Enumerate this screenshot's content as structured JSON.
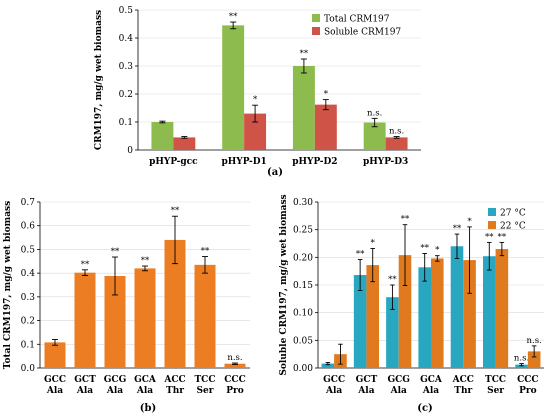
{
  "chart_data": [
    {
      "panel": "(a)",
      "type": "bar",
      "categories": [
        "pHYP-gcc",
        "pHYP-D1",
        "pHYP-D2",
        "pHYP-D3"
      ],
      "ylabel": "CRM197,  mg/g wet biomass",
      "ylim": [
        0,
        0.5
      ],
      "yticks": [
        0,
        0.1,
        0.2,
        0.3,
        0.4,
        0.5
      ],
      "yticklabels": [
        "0",
        "0.1",
        "0.2",
        "0.3",
        "0.4",
        "0.5"
      ],
      "grid": true,
      "legend_position": "top-right",
      "series": [
        {
          "name": "Total CRM197",
          "color": "#8dbb4e",
          "values": [
            0.1,
            0.445,
            0.3,
            0.098
          ],
          "errors": [
            0.003,
            0.012,
            0.025,
            0.015
          ],
          "sig": [
            "",
            "**",
            "**",
            "n.s."
          ],
          "sig_color": [
            "#000000",
            "#000000",
            "#000000",
            "#000000"
          ]
        },
        {
          "name": "Soluble CRM197",
          "color": "#d05348",
          "values": [
            0.045,
            0.13,
            0.162,
            0.045
          ],
          "errors": [
            0.003,
            0.03,
            0.018,
            0.003
          ],
          "sig": [
            "",
            "*",
            "*",
            "n.s."
          ],
          "sig_color": [
            "#000000",
            "#000000",
            "#000000",
            "#c0392b"
          ]
        }
      ]
    },
    {
      "panel": "(b)",
      "type": "bar",
      "categories": [
        [
          "GCC",
          "Ala"
        ],
        [
          "GCT",
          "Ala"
        ],
        [
          "GCG",
          "Ala"
        ],
        [
          "GCA",
          "Ala"
        ],
        [
          "ACC",
          "Thr"
        ],
        [
          "TCC",
          "Ser"
        ],
        [
          "CCC",
          "Pro"
        ]
      ],
      "ylabel": "Total CRM197,  mg/g wet biomass",
      "ylim": [
        0,
        0.7
      ],
      "yticks": [
        0,
        0.1,
        0.2,
        0.3,
        0.4,
        0.5,
        0.6,
        0.7
      ],
      "yticklabels": [
        "0.0",
        "0.1",
        "0.2",
        "0.3",
        "0.4",
        "0.5",
        "0.6",
        "0.7"
      ],
      "grid": true,
      "series": [
        {
          "name": "",
          "color": "#ed7d22",
          "values": [
            0.108,
            0.402,
            0.388,
            0.42,
            0.54,
            0.435,
            0.018
          ],
          "errors": [
            0.012,
            0.012,
            0.08,
            0.01,
            0.1,
            0.035,
            0.003
          ],
          "sig": [
            "",
            "**",
            "**",
            "**",
            "**",
            "**",
            "n.s."
          ]
        }
      ]
    },
    {
      "panel": "(c)",
      "type": "bar",
      "categories": [
        [
          "GCC",
          "Ala"
        ],
        [
          "GCT",
          "Ala"
        ],
        [
          "GCG",
          "Ala"
        ],
        [
          "GCA",
          "Ala"
        ],
        [
          "ACC",
          "Thr"
        ],
        [
          "TCC",
          "Ser"
        ],
        [
          "CCC",
          "Pro"
        ]
      ],
      "ylabel": "Soluble CRM197,  mg/g wet biomass",
      "ylim": [
        0,
        0.3
      ],
      "yticks": [
        0,
        0.05,
        0.1,
        0.15,
        0.2,
        0.25,
        0.3
      ],
      "yticklabels": [
        "0.00",
        "0.05",
        "0.10",
        "0.15",
        "0.20",
        "0.25",
        "0.30"
      ],
      "grid": true,
      "legend_position": "top-right",
      "series": [
        {
          "name": "27 °C",
          "color": "#2aa7c0",
          "values": [
            0.008,
            0.168,
            0.128,
            0.182,
            0.22,
            0.202,
            0.006
          ],
          "errors": [
            0.002,
            0.028,
            0.022,
            0.025,
            0.022,
            0.025,
            0.002
          ],
          "sig": [
            "",
            "**",
            "**",
            "**",
            "**",
            "**",
            "n.s."
          ]
        },
        {
          "name": "22 °C",
          "color": "#e07a1f",
          "values": [
            0.025,
            0.186,
            0.204,
            0.198,
            0.195,
            0.215,
            0.03
          ],
          "errors": [
            0.018,
            0.03,
            0.055,
            0.005,
            0.06,
            0.012,
            0.01
          ],
          "sig": [
            "",
            "*",
            "**",
            "*",
            "*",
            "**",
            "n.s."
          ]
        }
      ]
    }
  ]
}
